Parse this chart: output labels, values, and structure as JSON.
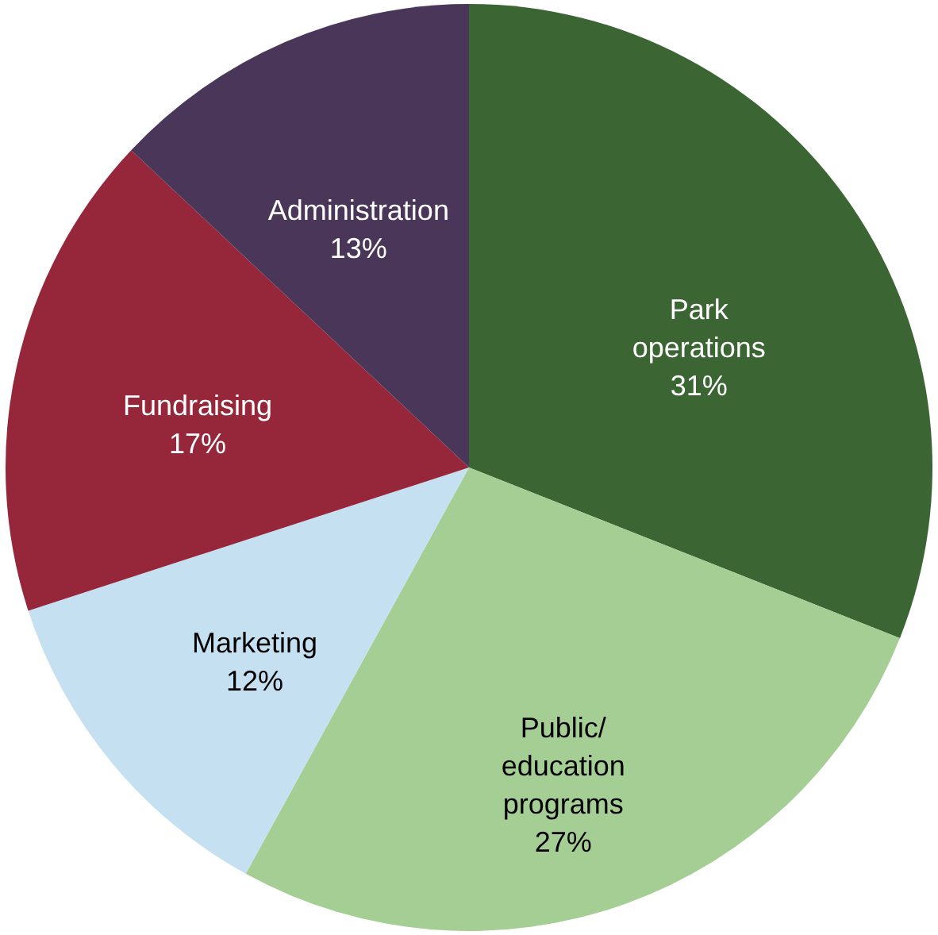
{
  "chart_data": {
    "type": "pie",
    "categories": [
      "Park operations",
      "Public/ education programs",
      "Marketing",
      "Fundraising",
      "Administration"
    ],
    "values": [
      31,
      27,
      12,
      17,
      13
    ],
    "value_labels": [
      "31%",
      "27%",
      "12%",
      "17%",
      "13%"
    ],
    "colors": [
      "#3b6532",
      "#a5ce94",
      "#c5e0f1",
      "#96263a",
      "#4a3659"
    ]
  }
}
